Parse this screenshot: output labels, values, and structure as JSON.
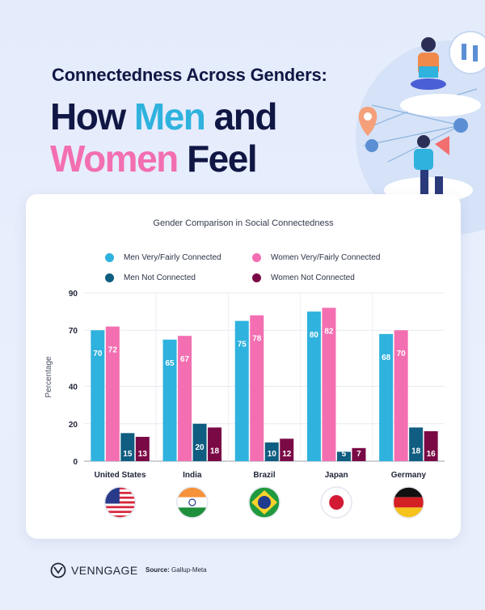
{
  "header": {
    "subtitle": "Connectedness Across Genders:",
    "headline_part1": "How",
    "headline_men": "Men",
    "headline_part2": "and",
    "headline_women": "Women",
    "headline_part3": "Feel"
  },
  "colors": {
    "navy": "#101744",
    "men_connected": "#2fb2de",
    "women_connected": "#f36fb1",
    "men_not": "#0f5d80",
    "women_not": "#7a0a45"
  },
  "chart_data": {
    "type": "bar",
    "title": "Gender Comparison in Social Connectedness",
    "ylabel": "Percentage",
    "xlabel": "",
    "ylim": [
      0,
      90
    ],
    "yticks": [
      0,
      20,
      40,
      70,
      90
    ],
    "grid": true,
    "legend_position": "top",
    "categories": [
      "United States",
      "India",
      "Brazil",
      "Japan",
      "Germany"
    ],
    "series": [
      {
        "name": "Men Very/Fairly Connected",
        "color": "#2fb2de",
        "values": [
          70,
          65,
          75,
          80,
          68
        ]
      },
      {
        "name": "Women Very/Fairly Connected",
        "color": "#f36fb1",
        "values": [
          72,
          67,
          78,
          82,
          70
        ]
      },
      {
        "name": "Men Not Connected",
        "color": "#0f5d80",
        "values": [
          15,
          20,
          10,
          5,
          18
        ]
      },
      {
        "name": "Women Not Connected",
        "color": "#7a0a45",
        "values": [
          13,
          18,
          12,
          7,
          16
        ]
      }
    ],
    "flag_icons": [
      "us-flag-icon",
      "india-flag-icon",
      "brazil-flag-icon",
      "japan-flag-icon",
      "germany-flag-icon"
    ]
  },
  "footer": {
    "brand": "VENNGAGE",
    "source_label": "Source:",
    "source_value": "Gallup-Meta"
  }
}
